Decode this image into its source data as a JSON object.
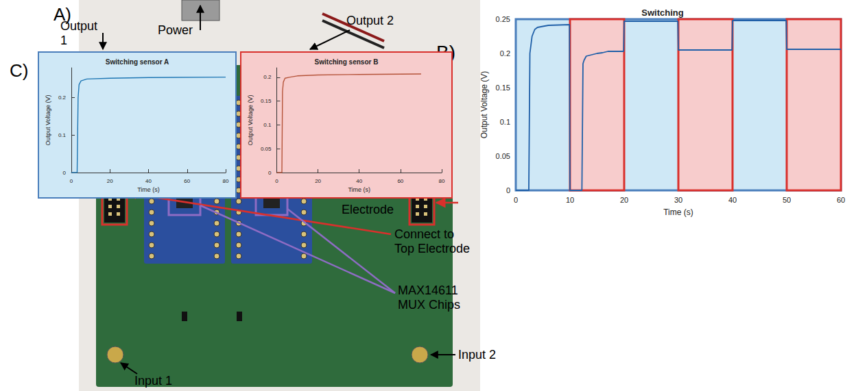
{
  "labels": {
    "panel_A": "A)",
    "panel_B": "B)",
    "panel_C": "C)",
    "output_1": "Output 1",
    "power": "Power",
    "output_2": "Output 2",
    "electrode": "Electrode",
    "top_electrode": "Connect to Top Electrode",
    "mux": "MAX14611 MUX Chips",
    "input_1": "Input 1",
    "input_2": "Input 2"
  },
  "chart_data": [
    {
      "type": "line",
      "title": "Switching",
      "x_label": "Time (s)",
      "y_label": "Output Voltage (V)",
      "x": [
        0,
        2.4,
        2.6,
        3,
        3.5,
        4,
        6,
        9.9,
        10,
        12.2,
        12.4,
        12.6,
        13,
        14,
        15,
        16,
        17,
        19.9,
        20,
        29.9,
        30,
        39.9,
        40,
        49.9,
        50,
        60
      ],
      "values": [
        0,
        0,
        0.2,
        0.225,
        0.235,
        0.238,
        0.241,
        0.242,
        0,
        0,
        0.185,
        0.19,
        0.196,
        0.198,
        0.2,
        0.201,
        0.203,
        0.203,
        0.247,
        0.247,
        0.205,
        0.205,
        0.248,
        0.248,
        0.206,
        0.206
      ],
      "color": "#1f5fa8",
      "xlim": [
        0,
        60
      ],
      "ylim": [
        0,
        0.25
      ],
      "xticks": [
        0,
        10,
        20,
        30,
        40,
        50,
        60
      ],
      "yticks": [
        0,
        0.05,
        0.1,
        0.15,
        0.2,
        0.25
      ],
      "grid": false,
      "highlight_spans": [
        {
          "x": [
            0,
            60
          ],
          "color": "#cfe8f6",
          "edge_color": "#4a7ebb"
        },
        {
          "x": [
            10,
            20
          ],
          "color": "#f7cccc",
          "edge_color": "#d9302c"
        },
        {
          "x": [
            30,
            40
          ],
          "color": "#f7cccc",
          "edge_color": "#d9302c"
        },
        {
          "x": [
            50,
            60
          ],
          "color": "#f7cccc",
          "edge_color": "#d9302c"
        }
      ]
    },
    {
      "type": "line",
      "title": "Switching sensor A",
      "x_label": "Time (s)",
      "y_label": "Output Voltage (V)",
      "x": [
        0,
        3,
        3.5,
        4,
        5,
        8,
        20,
        40,
        80
      ],
      "values": [
        0,
        0,
        0.2,
        0.235,
        0.245,
        0.25,
        0.252,
        0.254,
        0.255
      ],
      "color": "#1f77b4",
      "xlim": [
        0,
        80
      ],
      "ylim": [
        0,
        0.28
      ],
      "xticks": [
        0,
        20,
        40,
        60,
        80
      ],
      "yticks": [
        0,
        0.1,
        0.2
      ],
      "grid": false
    },
    {
      "type": "line",
      "title": "Switching sensor B",
      "x_label": "Time (s)",
      "y_label": "Output Voltage (V)",
      "x": [
        0,
        2.5,
        2.8,
        3.2,
        4,
        6,
        10,
        20,
        40,
        70
      ],
      "values": [
        0,
        0,
        0.17,
        0.19,
        0.198,
        0.2,
        0.203,
        0.205,
        0.206,
        0.207
      ],
      "color": "#b5543a",
      "xlim": [
        0,
        80
      ],
      "ylim": [
        0,
        0.22
      ],
      "xticks": [
        0,
        20,
        40,
        60,
        80
      ],
      "yticks": [
        0,
        0.05,
        0.1,
        0.15,
        0.2
      ],
      "grid": false
    }
  ]
}
